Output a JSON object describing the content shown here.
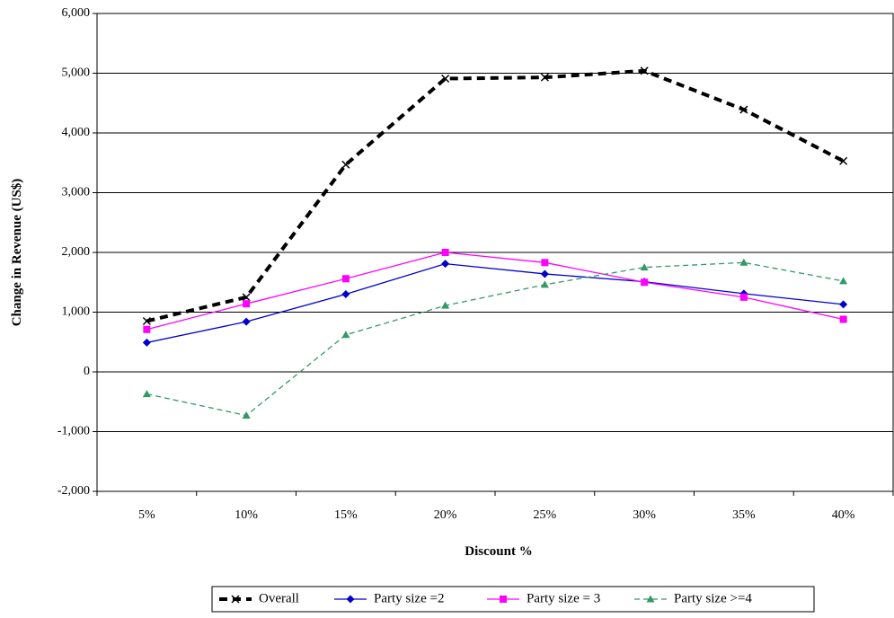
{
  "chart_data": {
    "type": "line",
    "xlabel": "Discount %",
    "ylabel": "Change in Revenue (US$)",
    "categories": [
      "5%",
      "10%",
      "15%",
      "20%",
      "25%",
      "30%",
      "35%",
      "40%"
    ],
    "ylim": [
      -2000,
      6000
    ],
    "yticks": [
      -2000,
      -1000,
      0,
      1000,
      2000,
      3000,
      4000,
      5000,
      6000
    ],
    "ytick_labels": [
      "-2,000",
      "-1,000",
      "0",
      "1,000",
      "2,000",
      "3,000",
      "4,000",
      "5,000",
      "6,000"
    ],
    "grid": "horizontal",
    "legend_position": "bottom",
    "series": [
      {
        "name": "Overall",
        "values": [
          850,
          1250,
          3470,
          4910,
          4930,
          5040,
          4390,
          3530
        ],
        "color": "#000000",
        "marker": "x",
        "line_style": "dashed-bold"
      },
      {
        "name": "Party size =2",
        "values": [
          490,
          840,
          1300,
          1810,
          1640,
          1510,
          1310,
          1130
        ],
        "color": "#0000CC",
        "marker": "diamond",
        "line_style": "solid"
      },
      {
        "name": "Party size = 3",
        "values": [
          710,
          1140,
          1560,
          2000,
          1830,
          1500,
          1250,
          880
        ],
        "color": "#FF00FF",
        "marker": "square",
        "line_style": "solid"
      },
      {
        "name": "Party size >=4",
        "values": [
          -370,
          -730,
          620,
          1110,
          1460,
          1750,
          1830,
          1520
        ],
        "color": "#339966",
        "marker": "triangle",
        "line_style": "dashed"
      }
    ]
  }
}
